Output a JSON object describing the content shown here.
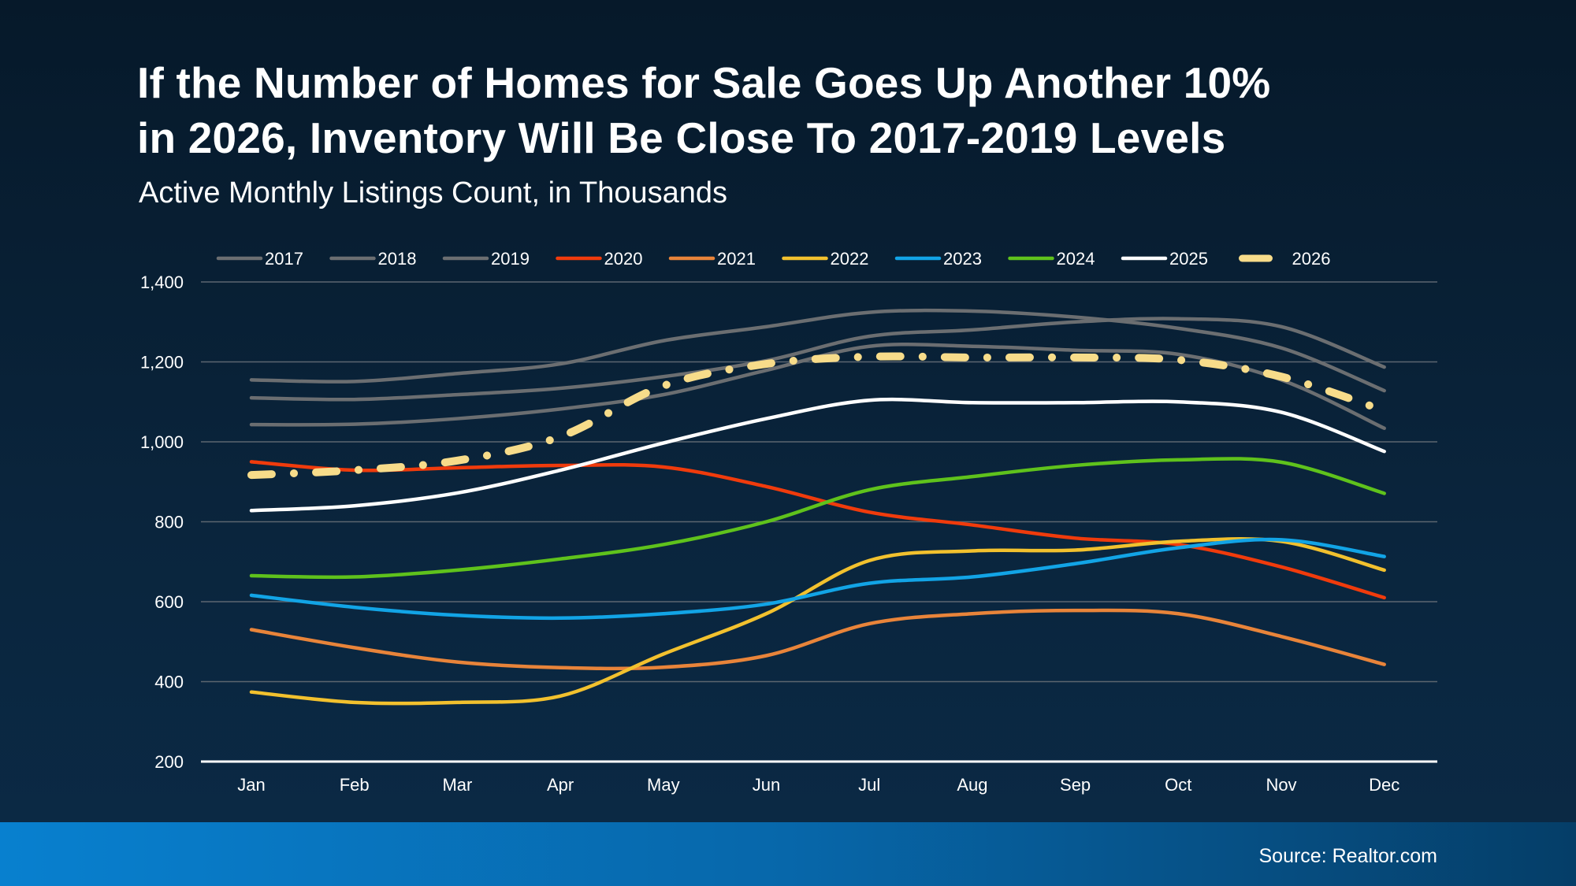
{
  "title_line1": "If the Number of Homes for Sale Goes Up Another 10%",
  "title_line2": "in 2026, Inventory Will Be Close To 2017-2019 Levels",
  "subtitle": "Active Monthly Listings Count, in Thousands",
  "source": "Source: Realtor.com",
  "chart_data": {
    "type": "line",
    "title": "If the Number of Homes for Sale Goes Up Another 10% in 2026, Inventory Will Be Close To 2017-2019 Levels",
    "subtitle": "Active Monthly Listings Count, in Thousands",
    "categories": [
      "Jan",
      "Feb",
      "Mar",
      "Apr",
      "May",
      "Jun",
      "Jul",
      "Aug",
      "Sep",
      "Oct",
      "Nov",
      "Dec"
    ],
    "yticks": [
      "200",
      "400",
      "600",
      "800",
      "1,000",
      "1,200",
      "1,400"
    ],
    "ylim": [
      200,
      1400
    ],
    "grid": true,
    "legend": "top",
    "series": [
      {
        "name": "2017",
        "color": "#6b6e71",
        "style": "solid",
        "values": [
          1155,
          1151,
          1171,
          1195,
          1253,
          1288,
          1324,
          1327,
          1312,
          1284,
          1235,
          1128
        ]
      },
      {
        "name": "2018",
        "color": "#6b6e71",
        "style": "solid",
        "values": [
          1110,
          1106,
          1118,
          1134,
          1163,
          1203,
          1264,
          1280,
          1300,
          1308,
          1288,
          1187
        ]
      },
      {
        "name": "2019",
        "color": "#6b6e71",
        "style": "solid",
        "values": [
          1043,
          1044,
          1058,
          1082,
          1118,
          1179,
          1239,
          1239,
          1229,
          1219,
          1155,
          1034
        ]
      },
      {
        "name": "2020",
        "color": "#f03b0c",
        "style": "solid",
        "values": [
          950,
          929,
          935,
          941,
          937,
          888,
          824,
          792,
          759,
          743,
          687,
          610
        ]
      },
      {
        "name": "2021",
        "color": "#e8843a",
        "style": "solid",
        "values": [
          530,
          485,
          449,
          435,
          436,
          465,
          545,
          570,
          578,
          570,
          513,
          443
        ]
      },
      {
        "name": "2022",
        "color": "#f2c12e",
        "style": "solid",
        "values": [
          374,
          348,
          348,
          364,
          469,
          570,
          703,
          727,
          729,
          751,
          751,
          679
        ]
      },
      {
        "name": "2023",
        "color": "#12a4e6",
        "style": "solid",
        "values": [
          616,
          586,
          566,
          559,
          570,
          594,
          646,
          662,
          695,
          735,
          755,
          713
        ]
      },
      {
        "name": "2024",
        "color": "#5fc21c",
        "style": "solid",
        "values": [
          665,
          662,
          679,
          707,
          743,
          800,
          880,
          913,
          941,
          955,
          949,
          871
        ]
      },
      {
        "name": "2025",
        "color": "#ffffff",
        "style": "solid",
        "values": [
          828,
          840,
          872,
          929,
          997,
          1058,
          1104,
          1098,
          1098,
          1100,
          1074,
          976
        ]
      },
      {
        "name": "2026",
        "color": "#f7dc8a",
        "style": "dash-dot",
        "values": [
          917,
          929,
          953,
          1013,
          1140,
          1195,
          1213,
          1211,
          1211,
          1205,
          1163,
          1078
        ]
      }
    ]
  }
}
